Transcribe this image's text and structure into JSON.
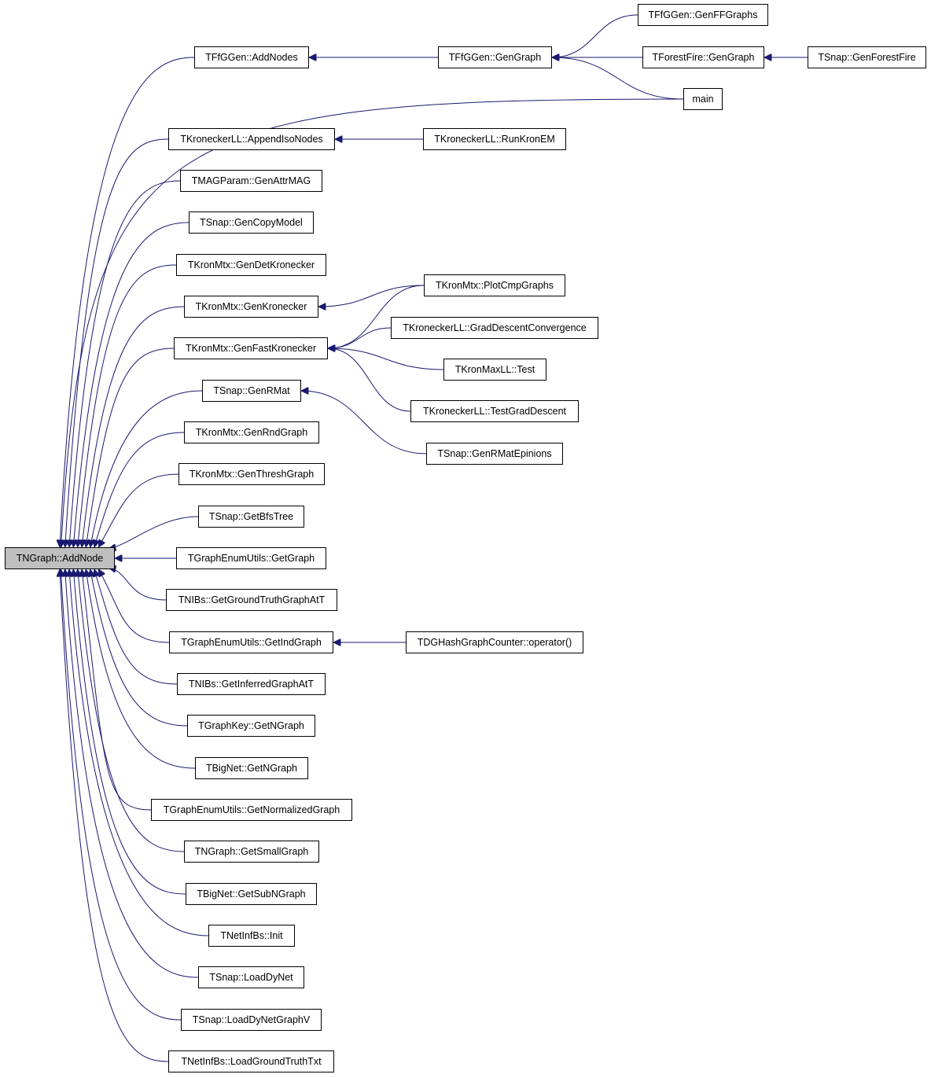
{
  "colors": {
    "edge": "#191970",
    "root_fill": "#bfbfbf",
    "node_border": "#000000"
  },
  "root": "addnode",
  "nodes": [
    {
      "id": "addnode",
      "label": "TNGraph::AddNode"
    },
    {
      "id": "addnodes",
      "label": "TFfGGen::AddNodes"
    },
    {
      "id": "appendiso",
      "label": "TKroneckerLL::AppendIsoNodes"
    },
    {
      "id": "genattrmag",
      "label": "TMAGParam::GenAttrMAG"
    },
    {
      "id": "gencopy",
      "label": "TSnap::GenCopyModel"
    },
    {
      "id": "gendetkron",
      "label": "TKronMtx::GenDetKronecker"
    },
    {
      "id": "genkron",
      "label": "TKronMtx::GenKronecker"
    },
    {
      "id": "genfastkron",
      "label": "TKronMtx::GenFastKronecker"
    },
    {
      "id": "genrmat",
      "label": "TSnap::GenRMat"
    },
    {
      "id": "genrnd",
      "label": "TKronMtx::GenRndGraph"
    },
    {
      "id": "genthresh",
      "label": "TKronMtx::GenThreshGraph"
    },
    {
      "id": "getbfs",
      "label": "TSnap::GetBfsTree"
    },
    {
      "id": "getgraph",
      "label": "TGraphEnumUtils::GetGraph"
    },
    {
      "id": "getgt",
      "label": "TNIBs::GetGroundTruthGraphAtT"
    },
    {
      "id": "getind",
      "label": "TGraphEnumUtils::GetIndGraph"
    },
    {
      "id": "getinf",
      "label": "TNIBs::GetInferredGraphAtT"
    },
    {
      "id": "gkngraph",
      "label": "TGraphKey::GetNGraph"
    },
    {
      "id": "bnngraph",
      "label": "TBigNet::GetNGraph"
    },
    {
      "id": "getnorm",
      "label": "TGraphEnumUtils::GetNormalizedGraph"
    },
    {
      "id": "getsmall",
      "label": "TNGraph::GetSmallGraph"
    },
    {
      "id": "getsub",
      "label": "TBigNet::GetSubNGraph"
    },
    {
      "id": "init",
      "label": "TNetInfBs::Init"
    },
    {
      "id": "loaddy",
      "label": "TSnap::LoadDyNet"
    },
    {
      "id": "loaddyv",
      "label": "TSnap::LoadDyNetGraphV"
    },
    {
      "id": "loadgt",
      "label": "TNetInfBs::LoadGroundTruthTxt"
    },
    {
      "id": "gengraph",
      "label": "TFfGGen::GenGraph"
    },
    {
      "id": "runkron",
      "label": "TKroneckerLL::RunKronEM"
    },
    {
      "id": "plotcmp",
      "label": "TKronMtx::PlotCmpGraphs"
    },
    {
      "id": "graddesc",
      "label": "TKroneckerLL::GradDescentConvergence"
    },
    {
      "id": "maxlltest",
      "label": "TKronMaxLL::Test"
    },
    {
      "id": "testgrad",
      "label": "TKroneckerLL::TestGradDescent"
    },
    {
      "id": "epinions",
      "label": "TSnap::GenRMatEpinions"
    },
    {
      "id": "operator",
      "label": "TDGHashGraphCounter::operator()"
    },
    {
      "id": "genff",
      "label": "TFfGGen::GenFFGraphs"
    },
    {
      "id": "ffgengraph",
      "label": "TForestFire::GenGraph"
    },
    {
      "id": "main",
      "label": "main"
    },
    {
      "id": "genforest",
      "label": "TSnap::GenForestFire"
    }
  ],
  "edges": [
    [
      "addnodes",
      "addnode"
    ],
    [
      "main",
      "addnode"
    ],
    [
      "appendiso",
      "addnode"
    ],
    [
      "genattrmag",
      "addnode"
    ],
    [
      "gencopy",
      "addnode"
    ],
    [
      "gendetkron",
      "addnode"
    ],
    [
      "genkron",
      "addnode"
    ],
    [
      "genfastkron",
      "addnode"
    ],
    [
      "genrmat",
      "addnode"
    ],
    [
      "genrnd",
      "addnode"
    ],
    [
      "genthresh",
      "addnode"
    ],
    [
      "getbfs",
      "addnode"
    ],
    [
      "getgraph",
      "addnode"
    ],
    [
      "getgt",
      "addnode"
    ],
    [
      "getind",
      "addnode"
    ],
    [
      "getinf",
      "addnode"
    ],
    [
      "gkngraph",
      "addnode"
    ],
    [
      "bnngraph",
      "addnode"
    ],
    [
      "getnorm",
      "addnode"
    ],
    [
      "getsmall",
      "addnode"
    ],
    [
      "getsub",
      "addnode"
    ],
    [
      "init",
      "addnode"
    ],
    [
      "loaddy",
      "addnode"
    ],
    [
      "loaddyv",
      "addnode"
    ],
    [
      "loadgt",
      "addnode"
    ],
    [
      "gengraph",
      "addnodes"
    ],
    [
      "genff",
      "gengraph"
    ],
    [
      "ffgengraph",
      "gengraph"
    ],
    [
      "main",
      "gengraph"
    ],
    [
      "genforest",
      "ffgengraph"
    ],
    [
      "runkron",
      "appendiso"
    ],
    [
      "plotcmp",
      "genkron"
    ],
    [
      "plotcmp",
      "genfastkron"
    ],
    [
      "graddesc",
      "genfastkron"
    ],
    [
      "maxlltest",
      "genfastkron"
    ],
    [
      "testgrad",
      "genfastkron"
    ],
    [
      "epinions",
      "genrmat"
    ],
    [
      "operator",
      "getind"
    ]
  ]
}
